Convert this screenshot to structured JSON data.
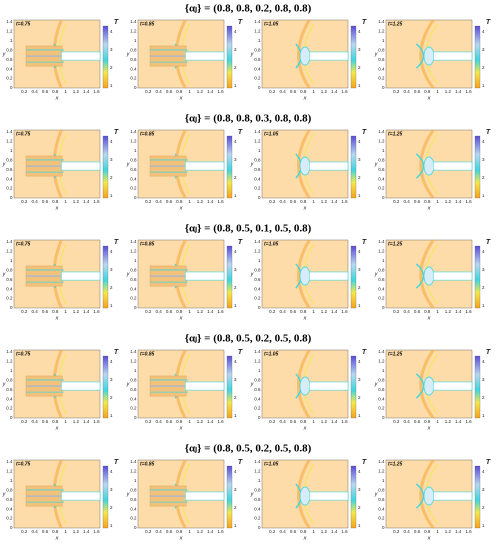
{
  "axes": {
    "x_label": "x",
    "y_label": "y",
    "x_ticks": [
      "0.2",
      "0.4",
      "0.6",
      "0.8",
      "1",
      "1.2",
      "1.4",
      "1.6"
    ],
    "y_ticks": [
      "0",
      "0.2",
      "0.4",
      "0.6",
      "0.8",
      "1",
      "1.2",
      "1.4"
    ],
    "colorbar": {
      "label": "T",
      "ticks": [
        "1",
        "2",
        "3",
        "4"
      ]
    }
  },
  "rows": [
    {
      "title": "{αⱼ} = (0.8, 0.8, 0.2, 0.8, 0.8)",
      "panels": [
        {
          "time": "t=0.75"
        },
        {
          "time": "t=0.85"
        },
        {
          "time": "t=1.05"
        },
        {
          "time": "t=1.25"
        }
      ]
    },
    {
      "title": "{αⱼ} = (0.8, 0.8, 0.3, 0.8, 0.8)",
      "panels": [
        {
          "time": "t=0.75"
        },
        {
          "time": "t=0.85"
        },
        {
          "time": "t=1.05"
        },
        {
          "time": "t=1.25"
        }
      ]
    },
    {
      "title": "{αⱼ} = (0.8, 0.5, 0.1, 0.5, 0.8)",
      "panels": [
        {
          "time": "t=0.75"
        },
        {
          "time": "t=0.85"
        },
        {
          "time": "t=1.05"
        },
        {
          "time": "t=1.25"
        }
      ]
    },
    {
      "title": "{αⱼ} = (0.8, 0.5, 0.2, 0.5, 0.8)",
      "panels": [
        {
          "time": "t=0.75"
        },
        {
          "time": "t=0.85"
        },
        {
          "time": "t=1.05"
        },
        {
          "time": "t=1.25"
        }
      ]
    },
    {
      "title": "{αⱼ} = (0.8, 0.5, 0.2, 0.5, 0.8)",
      "panels": [
        {
          "time": "t=0.75"
        },
        {
          "time": "t=0.85"
        },
        {
          "time": "t=1.05"
        },
        {
          "time": "t=1.25"
        }
      ]
    }
  ]
}
